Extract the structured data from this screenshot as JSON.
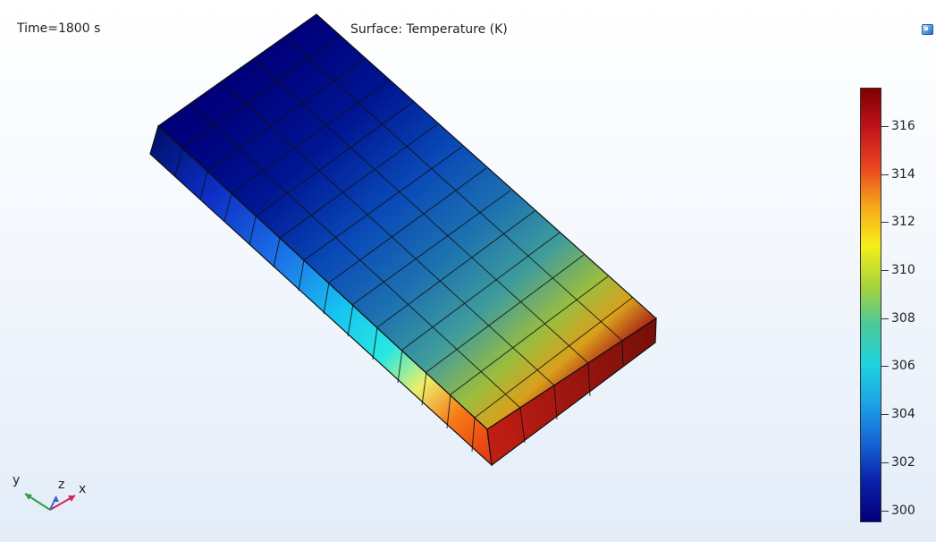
{
  "view": {
    "time_label": "Time=1800 s",
    "plot_title": "Surface: Temperature (K)"
  },
  "colorbar": {
    "min": 299.5,
    "max": 317.6,
    "ticks": [
      {
        "value": 300,
        "label": "300"
      },
      {
        "value": 302,
        "label": "302"
      },
      {
        "value": 304,
        "label": "304"
      },
      {
        "value": 306,
        "label": "306"
      },
      {
        "value": 308,
        "label": "308"
      },
      {
        "value": 310,
        "label": "310"
      },
      {
        "value": 312,
        "label": "312"
      },
      {
        "value": 314,
        "label": "314"
      },
      {
        "value": 316,
        "label": "316"
      }
    ],
    "colors": [
      "#00007a",
      "#0a1fa8",
      "#1565d6",
      "#1ba3e6",
      "#1fd3df",
      "#4bc89a",
      "#a9d43a",
      "#f5ef1a",
      "#f7a81a",
      "#e9451f",
      "#c0141b",
      "#7f0000"
    ]
  },
  "axes": {
    "x_label": "x",
    "y_label": "y",
    "z_label": "z",
    "x_color": "#d0255a",
    "y_color": "#2e9f3e",
    "z_color": "#3763c9"
  },
  "toolbar": {
    "corner_button_icon": "window-icon"
  }
}
